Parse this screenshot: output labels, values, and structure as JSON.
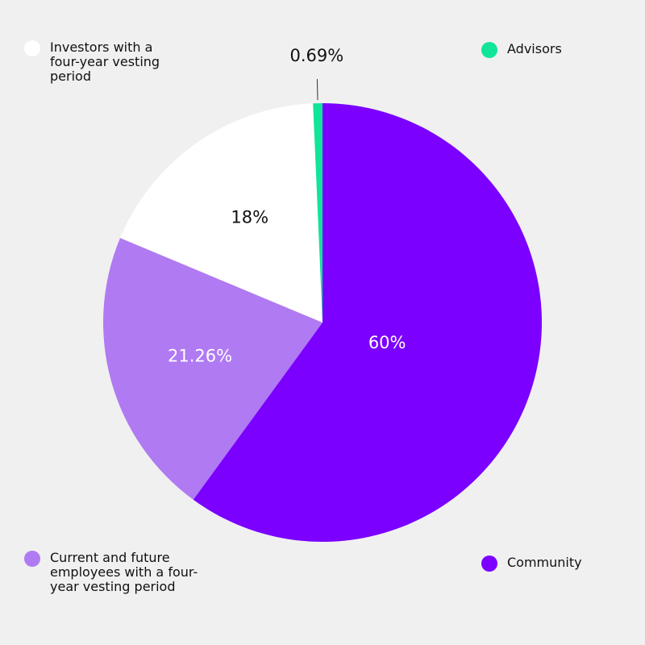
{
  "chart_data": {
    "type": "pie",
    "categories": [
      "Community",
      "Current and future employees with a four-year vesting period",
      "Investors with a four-year vesting period",
      "Advisors"
    ],
    "values": [
      60,
      21.26,
      18,
      0.69
    ],
    "value_labels": [
      "60%",
      "21.26%",
      "18%",
      "0.69%"
    ],
    "colors": [
      "#7b00ff",
      "#b07af2",
      "#ffffff",
      "#10e59a"
    ]
  }
}
